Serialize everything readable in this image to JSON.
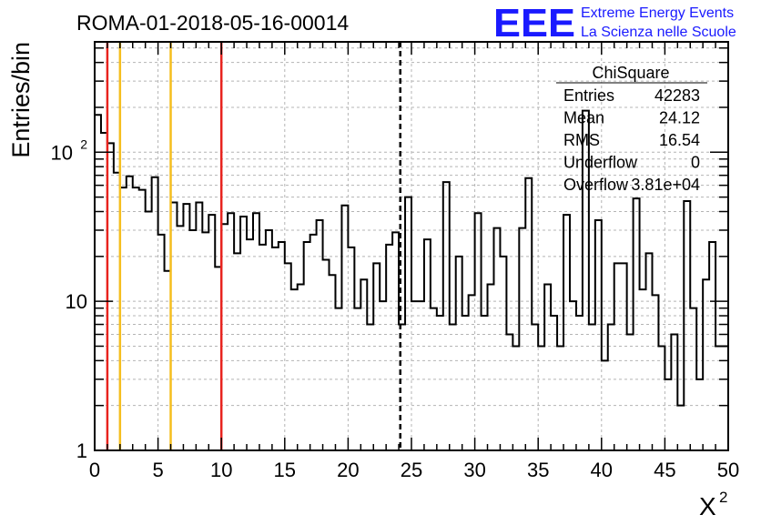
{
  "chart_data": {
    "type": "bar",
    "title": "ROMA-01-2018-05-16-00014",
    "ylabel": "Entries/bin",
    "xlabel": "X",
    "xlabel_sup": "2",
    "xlim": [
      0,
      50
    ],
    "ylim": [
      1,
      550
    ],
    "y_scale": "log",
    "grid": true,
    "bin_width": 0.5,
    "x_ticks": [
      0,
      5,
      10,
      15,
      20,
      25,
      30,
      35,
      40,
      45,
      50
    ],
    "y_ticks": [
      {
        "value": 1,
        "label": "1"
      },
      {
        "value": 10,
        "label": "10"
      },
      {
        "value": 100,
        "label": "10",
        "sup": "2"
      }
    ],
    "values": [
      178,
      135,
      115,
      73,
      58,
      69,
      58,
      56,
      40,
      68,
      28,
      16,
      46,
      32,
      45,
      30,
      46,
      29,
      38,
      17,
      33,
      39,
      21,
      37,
      26,
      39,
      24,
      30,
      23,
      25,
      18,
      12,
      13,
      25,
      28,
      35,
      19,
      15,
      9,
      44,
      23,
      9,
      14,
      7,
      18,
      10,
      24,
      29,
      7,
      50,
      10,
      10,
      26,
      9,
      8,
      63,
      7,
      20,
      8,
      11,
      39,
      8,
      13,
      31,
      20,
      6,
      5,
      31,
      67,
      7,
      5,
      13,
      8,
      5,
      38,
      10,
      8,
      190,
      7,
      35,
      4,
      7,
      18,
      18,
      6,
      49,
      12,
      21,
      11,
      5,
      3,
      6,
      2,
      47,
      9,
      3,
      14,
      25,
      5,
      5
    ],
    "vlines": [
      {
        "x": 1,
        "color": "#e8231e",
        "style": "solid"
      },
      {
        "x": 2,
        "color": "#f5be1e",
        "style": "solid"
      },
      {
        "x": 6,
        "color": "#f5be1e",
        "style": "solid"
      },
      {
        "x": 10,
        "color": "#e8231e",
        "style": "solid"
      },
      {
        "x": 24.12,
        "color": "#000000",
        "style": "dashed"
      }
    ],
    "stats": {
      "title": "ChiSquare",
      "rows": [
        {
          "label": "Entries",
          "value": "42283"
        },
        {
          "label": "Mean",
          "value": "24.12"
        },
        {
          "label": "RMS",
          "value": "16.54"
        },
        {
          "label": "Underflow",
          "value": "0"
        },
        {
          "label": "Overflow",
          "value": "3.81e+04"
        }
      ]
    }
  },
  "logo": {
    "mark": "EEE",
    "line1": "Extreme Energy Events",
    "line2": "La Scienza nelle Scuole",
    "color": "#1a1aff"
  }
}
